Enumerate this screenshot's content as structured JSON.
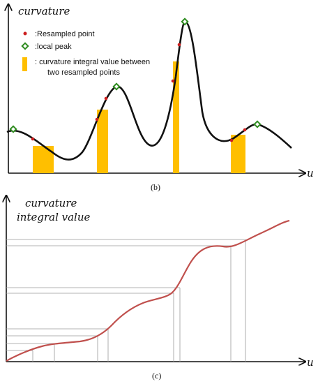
{
  "panel_b": {
    "ylabel": "curvature",
    "xlabel": "u",
    "caption": "(b)",
    "legend": {
      "resampled": ":Resampled point",
      "peak": ":local peak",
      "integral_line1": ": curvature integral value between",
      "integral_line2": "two resampled points"
    }
  },
  "panel_c": {
    "ylabel_line1": "curvature",
    "ylabel_line2": "integral value",
    "xlabel": "u",
    "caption": "(c)"
  },
  "colors": {
    "curve": "#111111",
    "resampled_point": "#cc1f1f",
    "peak_marker": "#2e8b1f",
    "integral_bar": "#ffbf00",
    "integral_curve": "#c0504d",
    "guide_line": "#9a9a9a"
  }
}
